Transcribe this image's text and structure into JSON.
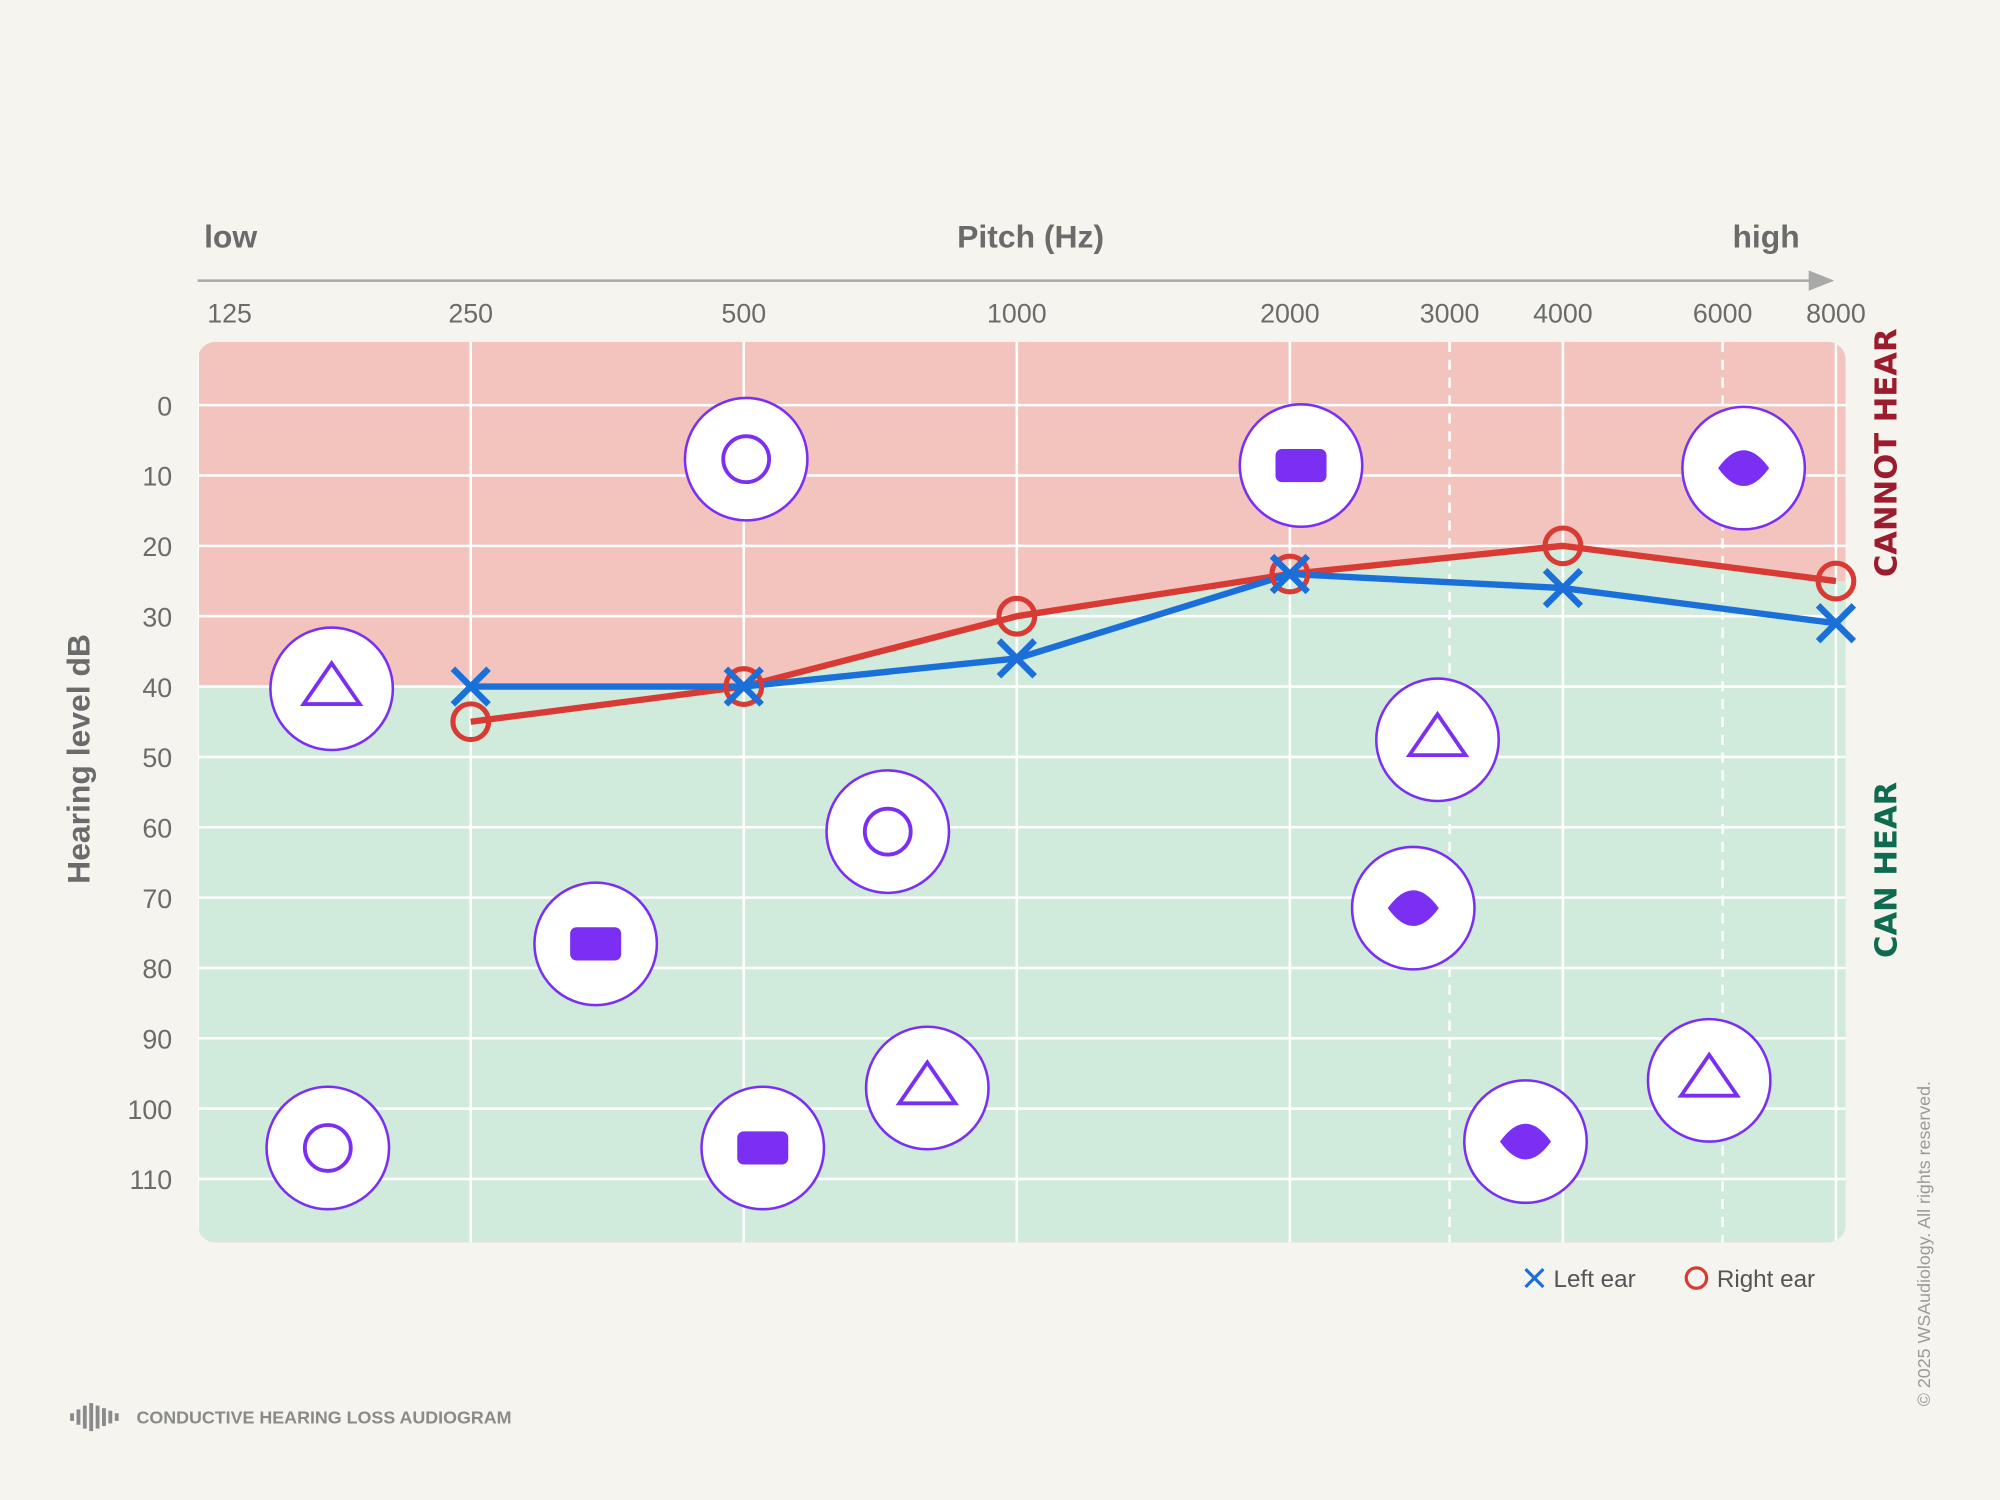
{
  "chart_data": {
    "type": "line",
    "title": "Pitch (Hz)",
    "x_label_low": "low",
    "x_label_high": "high",
    "y_label": "Hearing level dB",
    "log_x": true,
    "x": [
      250,
      500,
      1000,
      2000,
      4000,
      8000
    ],
    "xlim": [
      125,
      8200
    ],
    "xticks": [
      125,
      250,
      500,
      1000,
      2000,
      3000,
      4000,
      6000,
      8000
    ],
    "ylim": [
      -9,
      119
    ],
    "y_inverted": true,
    "yticks": [
      0,
      10,
      20,
      30,
      40,
      50,
      60,
      70,
      80,
      90,
      100,
      110
    ],
    "grid": true,
    "zones": {
      "above": "CANNOT HEAR",
      "above_color": "#f2c4bd",
      "above_text_color": "#9b1c2c",
      "below": "CAN HEAR",
      "below_color": "#d0eadb",
      "below_text_color": "#0f6b4f"
    },
    "series": [
      {
        "name": "Left ear",
        "color": "#1a6fd8",
        "marker": "x",
        "values": [
          40,
          40,
          36,
          24,
          26,
          31
        ]
      },
      {
        "name": "Right ear",
        "color": "#d83a34",
        "marker": "o",
        "values": [
          45,
          40,
          30,
          24,
          20,
          25
        ]
      }
    ],
    "legend": "bottom-right"
  },
  "footer": {
    "title": "CONDUCTIVE HEARING LOSS AUDIOGRAM",
    "copyright": "© 2025 WSAudiology. All rights reserved."
  }
}
